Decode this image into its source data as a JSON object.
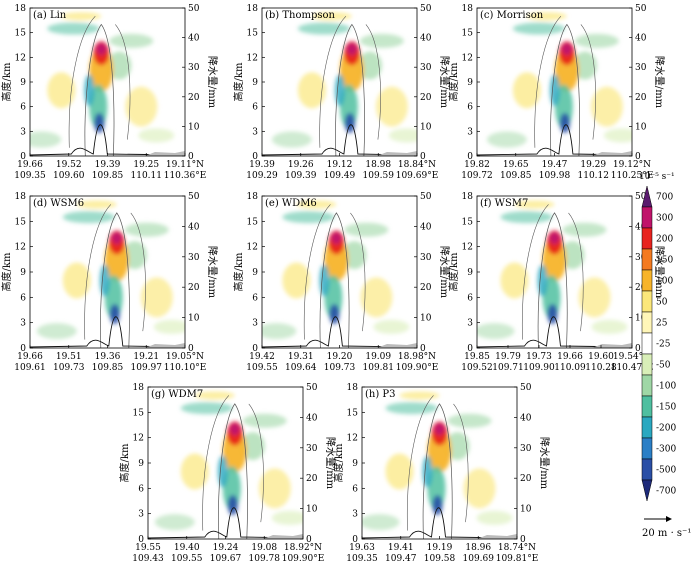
{
  "figure": {
    "legend": {
      "unit_label": "10⁻⁵ s⁻¹",
      "levels": [
        "700",
        "300",
        "200",
        "150",
        "100",
        "50",
        "25",
        "-25",
        "-50",
        "-100",
        "-150",
        "-200",
        "-300",
        "-500",
        "-700"
      ],
      "colors": [
        "#5a1a6e",
        "#c0136a",
        "#e8231f",
        "#f47a20",
        "#f7b42a",
        "#fbe77a",
        "#fff6b8",
        "#ffffff",
        "#d9efb8",
        "#9fd7a6",
        "#4fbfa0",
        "#2aa8c0",
        "#2b7fc6",
        "#2a4fa6",
        "#1e2a7a"
      ],
      "arrow_label": "20 m · s⁻¹"
    },
    "axis_text": {
      "left": "高度/km",
      "right": "降水量/mm"
    }
  },
  "chart_data": [
    {
      "type": "heatmap",
      "panel": "(a) Lin",
      "y_ticks": [
        "0",
        "3",
        "6",
        "9",
        "12",
        "15",
        "18"
      ],
      "y2_ticks": [
        "0",
        "10",
        "20",
        "30",
        "40",
        "50"
      ],
      "lat_ticks": [
        "19.66",
        "19.52",
        "19.39",
        "19.25",
        "19.11°N"
      ],
      "lon_ticks": [
        "109.35",
        "109.60",
        "109.85",
        "110.11",
        "110.36°E"
      ],
      "peak_x_frac": 0.46
    },
    {
      "type": "heatmap",
      "panel": "(b) Thompson",
      "y_ticks": [
        "0",
        "3",
        "6",
        "9",
        "12",
        "15",
        "18"
      ],
      "y2_ticks": [
        "0",
        "10",
        "20",
        "30",
        "40",
        "50"
      ],
      "lat_ticks": [
        "19.39",
        "19.26",
        "19.12",
        "18.98",
        "18.84°N"
      ],
      "lon_ticks": [
        "109.29",
        "109.39",
        "109.49",
        "109.59",
        "109.69°E"
      ],
      "peak_x_frac": 0.58
    },
    {
      "type": "heatmap",
      "panel": "(c) Morrison",
      "y_ticks": [
        "0",
        "3",
        "6",
        "9",
        "12",
        "15",
        "18"
      ],
      "y2_ticks": [
        "0",
        "10",
        "20",
        "30",
        "40",
        "50"
      ],
      "lat_ticks": [
        "19.82",
        "19.65",
        "19.47",
        "19.29",
        "19.12°N"
      ],
      "lon_ticks": [
        "109.72",
        "109.85",
        "109.98",
        "110.12",
        "110.25°E"
      ],
      "peak_x_frac": 0.58
    },
    {
      "type": "heatmap",
      "panel": "(d) WSM6",
      "y_ticks": [
        "0",
        "3",
        "6",
        "9",
        "12",
        "15",
        "18"
      ],
      "y2_ticks": [
        "0",
        "10",
        "20",
        "30",
        "40",
        "50"
      ],
      "lat_ticks": [
        "19.66",
        "19.51",
        "19.36",
        "19.21",
        "19.05°N"
      ],
      "lon_ticks": [
        "109.61",
        "109.73",
        "109.85",
        "109.97",
        "110.10°E"
      ],
      "peak_x_frac": 0.56
    },
    {
      "type": "heatmap",
      "panel": "(e) WDM6",
      "y_ticks": [
        "0",
        "3",
        "6",
        "9",
        "12",
        "15",
        "18"
      ],
      "y2_ticks": [
        "0",
        "10",
        "20",
        "30",
        "40",
        "50"
      ],
      "lat_ticks": [
        "19.42",
        "19.31",
        "19.20",
        "19.09",
        "18.98°N"
      ],
      "lon_ticks": [
        "109.55",
        "109.64",
        "109.73",
        "109.81",
        "109.90°E"
      ],
      "peak_x_frac": 0.48
    },
    {
      "type": "heatmap",
      "panel": "(f) WSM7",
      "y_ticks": [
        "0",
        "3",
        "6",
        "9",
        "12",
        "15",
        "18"
      ],
      "y2_ticks": [
        "0",
        "10",
        "20",
        "30",
        "40",
        "50"
      ],
      "lat_ticks": [
        "19.85",
        "19.79",
        "19.73",
        "19.66",
        "19.60",
        "19.54°N"
      ],
      "lon_ticks": [
        "109.52",
        "109.71",
        "109.90",
        "110.09",
        "110.28",
        "110.47°E"
      ],
      "peak_x_frac": 0.5
    },
    {
      "type": "heatmap",
      "panel": "(g) WDM7",
      "y_ticks": [
        "0",
        "3",
        "6",
        "9",
        "12",
        "15",
        "18"
      ],
      "y2_ticks": [
        "0",
        "10",
        "20",
        "30",
        "40",
        "50"
      ],
      "lat_ticks": [
        "19.55",
        "19.40",
        "19.24",
        "19.08",
        "18.92°N"
      ],
      "lon_ticks": [
        "109.43",
        "109.55",
        "109.67",
        "109.78",
        "109.90°E"
      ],
      "peak_x_frac": 0.56
    },
    {
      "type": "heatmap",
      "panel": "(h) P3",
      "y_ticks": [
        "0",
        "3",
        "6",
        "9",
        "12",
        "15",
        "18"
      ],
      "y2_ticks": [
        "0",
        "10",
        "20",
        "30",
        "40",
        "50"
      ],
      "lat_ticks": [
        "19.63",
        "19.41",
        "19.19",
        "18.96",
        "18.74°N"
      ],
      "lon_ticks": [
        "109.35",
        "109.47",
        "109.58",
        "109.69",
        "109.81°E"
      ],
      "peak_x_frac": 0.5
    }
  ]
}
